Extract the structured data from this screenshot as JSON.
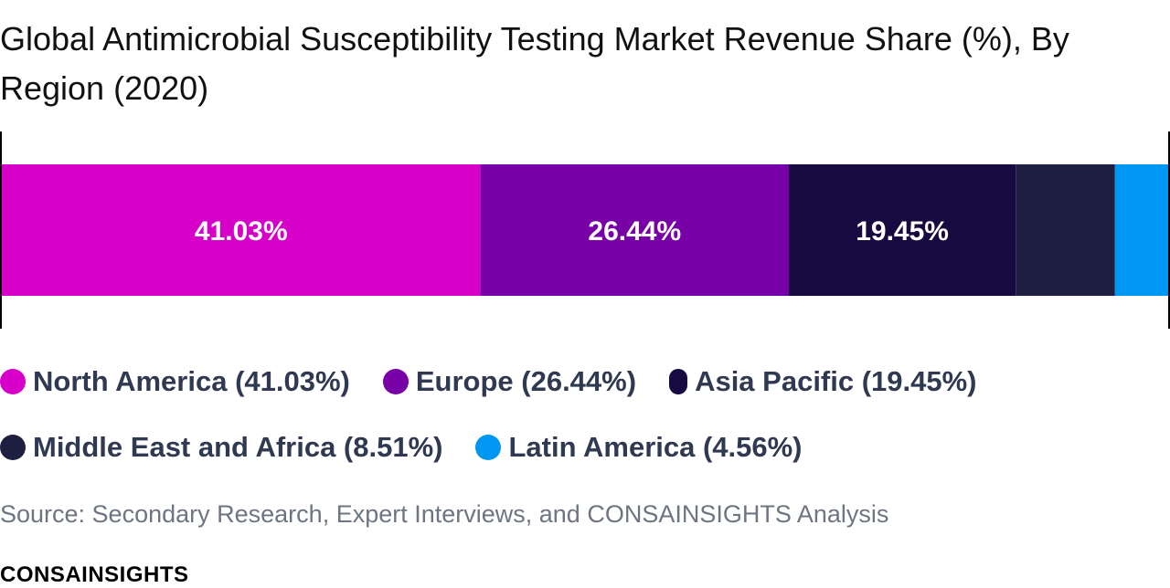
{
  "chart_data": {
    "type": "bar",
    "orientation": "horizontal-stacked",
    "title": "Global Antimicrobial Susceptibility Testing Market Revenue Share (%), By Region (2020)",
    "xlim": [
      0,
      100
    ],
    "series": [
      {
        "name": "North America",
        "value": 41.03,
        "data_label": "41.03%",
        "legend_label": "North America (41.03%)",
        "color": "#d600c9"
      },
      {
        "name": "Europe",
        "value": 26.44,
        "data_label": "26.44%",
        "legend_label": "Europe (26.44%)",
        "color": "#7700a6"
      },
      {
        "name": "Asia Pacific",
        "value": 19.45,
        "data_label": "19.45%",
        "legend_label": "Asia Pacific (19.45%)",
        "color": "#170a40"
      },
      {
        "name": "Middle East and Africa",
        "value": 8.51,
        "data_label": "",
        "legend_label": "Middle East and Africa (8.51%)",
        "color": "#1e1f40"
      },
      {
        "name": "Latin America",
        "value": 4.56,
        "data_label": "",
        "legend_label": "Latin America (4.56%)",
        "color": "#0097f2"
      }
    ],
    "legend_position": "bottom",
    "grid": false
  },
  "source": "Source: Secondary Research, Expert Interviews, and CONSAINSIGHTS Analysis",
  "brand": "CONSAINSIGHTS"
}
